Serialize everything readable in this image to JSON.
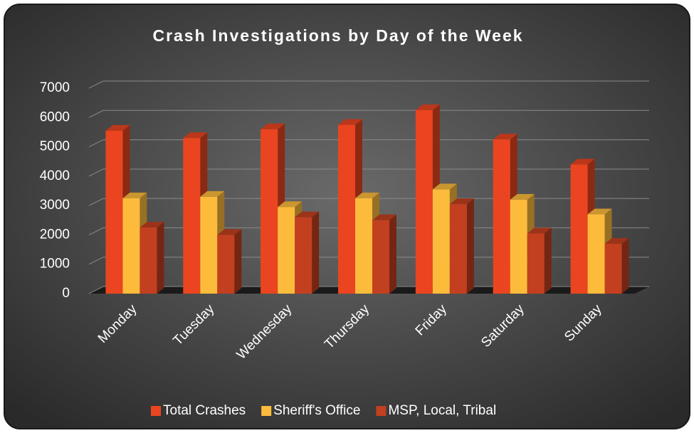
{
  "chart_data": {
    "type": "bar3d",
    "title": "Crash Investigations by Day of the Week",
    "categories": [
      "Monday",
      "Tuesday",
      "Wednesday",
      "Thursday",
      "Friday",
      "Saturday",
      "Sunday"
    ],
    "series": [
      {
        "name": "Total Crashes",
        "color": "#ea4520",
        "values": [
          5550,
          5300,
          5600,
          5750,
          6250,
          5250,
          4400
        ]
      },
      {
        "name": "Sheriff's Office",
        "color": "#fdbb3c",
        "values": [
          3250,
          3300,
          2950,
          3250,
          3550,
          3200,
          2700
        ]
      },
      {
        "name": "MSP, Local, Tribal",
        "color": "#c2401f",
        "values": [
          2250,
          2000,
          2600,
          2500,
          3050,
          2050,
          1700
        ]
      }
    ],
    "ylim": [
      0,
      7000
    ],
    "yticks": [
      0,
      1000,
      2000,
      3000,
      4000,
      5000,
      6000,
      7000
    ],
    "grid": true,
    "legend": "bottom"
  }
}
